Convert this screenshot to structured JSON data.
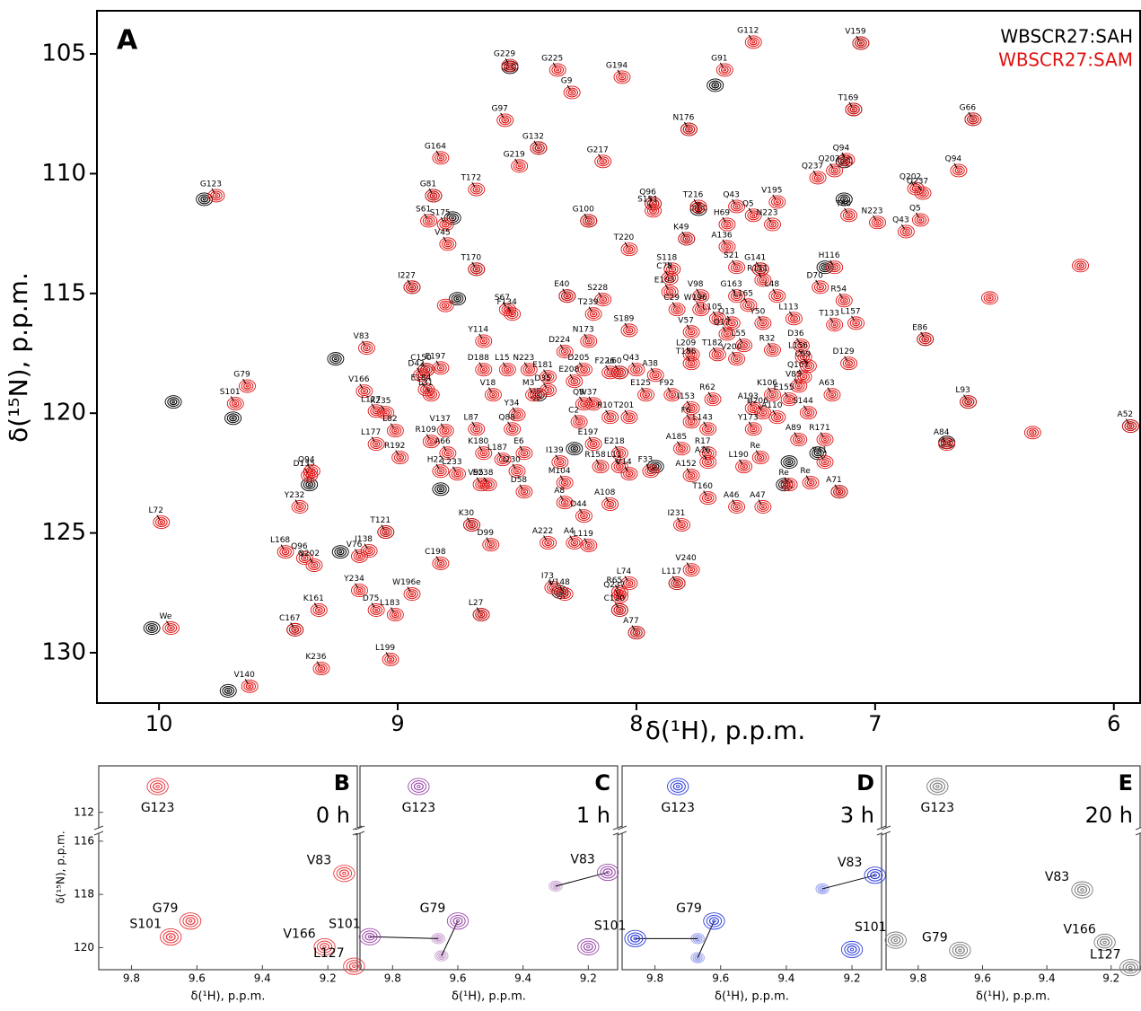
{
  "chart_data": [
    {
      "type": "scatter",
      "label": "A",
      "legend": "top-right",
      "xlabel": "δ(¹H), p.p.m.",
      "ylabel": "δ(¹⁵N), p.p.m.",
      "xlim": [
        10.26,
        5.89
      ],
      "ylim": [
        103.2,
        132.1
      ],
      "xticks": [
        10,
        9,
        8,
        7,
        6
      ],
      "yticks": [
        105,
        110,
        115,
        120,
        125,
        130
      ],
      "series": [
        {
          "name": "WBSCR27:SAH",
          "color": "#000000",
          "x": [
            8.53,
            7.67,
            7.78,
            7.09,
            8.41,
            9.81,
            8.85,
            8.77,
            8.2,
            7.93,
            7.74,
            7.79,
            8.94,
            8.67,
            8.75,
            8.29,
            7.48,
            7.21,
            9.26,
            8.88,
            9.94,
            9.69,
            10.03,
            9.71,
            9.37,
            8.82,
            8.69,
            9.05,
            9.24,
            8.65,
            9.43,
            8.32,
            8.07,
            7.83,
            8.0,
            7.36,
            7.24,
            7.38,
            6.7,
            6.79,
            5.93,
            7.13,
            7.13,
            7.06,
            6.59,
            6.61,
            7.15,
            8.07,
            7.92,
            8.41,
            8.26
          ],
          "values": [
            105.56,
            106.31,
            108.15,
            107.32,
            108.93,
            111.07,
            110.92,
            111.85,
            111.97,
            111.25,
            111.48,
            112.72,
            114.74,
            113.99,
            115.22,
            115.11,
            113.99,
            113.91,
            117.73,
            118.18,
            119.53,
            120.21,
            128.97,
            131.59,
            122.98,
            123.17,
            124.66,
            124.96,
            125.79,
            128.41,
            129.04,
            127.47,
            128.22,
            127.1,
            129.16,
            122.04,
            121.67,
            122.98,
            121.22,
            116.91,
            120.54,
            111.07,
            109.49,
            104.55,
            107.73,
            119.53,
            123.28,
            118.3,
            122.23,
            119.23,
            121.48
          ]
        },
        {
          "name": "WBSCR27:SAM",
          "color": "#e01010",
          "labels": [
            "G112",
            "V159",
            "G229",
            "G225",
            "G194",
            "G91",
            "G9",
            "G97",
            "N176",
            "T169",
            "G66",
            "G132",
            "G164",
            "G219",
            "G217",
            "Q94",
            "Q202",
            "Q237",
            "Q94",
            "G123",
            "G81",
            "T172",
            "G100",
            "Q96",
            "T216",
            "Q43",
            "V195",
            "S61",
            "S175",
            "S151",
            "K49",
            "Q5",
            "H69",
            "N223",
            "Q202",
            "Q237",
            "Q5",
            "N223",
            "Q43",
            "T80",
            "V45",
            "I227",
            "T170",
            "T220",
            "A136",
            "S21",
            "G141",
            "S118",
            "R111",
            "H116",
            "C78",
            "E40",
            "S228",
            "E103",
            "G163",
            "R54",
            "D70",
            "S67",
            "F134",
            "L165",
            "L48",
            "V98",
            "W196",
            "C29",
            "T239",
            "S189",
            "Y50",
            "Q13",
            "L105",
            "L113",
            "N173",
            "V57",
            "Q12",
            "T133",
            "L157",
            "V83",
            "Y114",
            "D224",
            "L55",
            "R32",
            "D36",
            "L209",
            "T182",
            "E197",
            "E86",
            "T186",
            "L156",
            "C150",
            "D188",
            "L15",
            "N223",
            "Q43",
            "A38",
            "L60",
            "V200",
            "C59",
            "D205",
            "F226",
            "E181",
            "E208",
            "D129",
            "D42",
            "Q107",
            "V166",
            "E184",
            "M3",
            "D35",
            "V18",
            "E125",
            "F92",
            "R62",
            "V85",
            "K106",
            "E155",
            "S101",
            "G79",
            "L31",
            "Q5",
            "L127",
            "Y34",
            "W37",
            "R10",
            "C2",
            "I153",
            "A193",
            "H206",
            "A63",
            "R235",
            "L87",
            "Q88",
            "V137",
            "T201",
            "A110",
            "S144",
            "L93",
            "F6",
            "L82",
            "L143",
            "Y173",
            "A89",
            "R171",
            "L177",
            "R109",
            "E197",
            "E6",
            "R192",
            "A66",
            "K180",
            "L187",
            "E218",
            "L11",
            "R17",
            "A185",
            "Re",
            "A16",
            "A84",
            "A52",
            "Y41",
            "H22",
            "I230",
            "I139",
            "R158",
            "V14",
            "F33",
            "L190",
            "Re",
            "Re",
            "L233",
            "M104",
            "A152",
            "V95",
            "E238",
            "D135",
            "Y232",
            "Q94",
            "D58",
            "A8",
            "A108",
            "D44",
            "T160",
            "A46",
            "A47",
            "A71",
            "L72",
            "K30",
            "T121",
            "L168",
            "I231",
            "A222",
            "A4",
            "D99",
            "L119",
            "I138",
            "V76",
            "C198",
            "Q96",
            "Q202",
            "V240",
            "R65",
            "L74",
            "L117",
            "Y234",
            "I73",
            "V148",
            "Q237",
            "C120",
            "W196e",
            "K161",
            "D75",
            "L183",
            "L27",
            "C167",
            "We",
            "A77",
            "L199",
            "V140",
            "K236",
            null,
            null,
            null,
            null
          ],
          "x": [
            7.51,
            7.06,
            8.53,
            8.33,
            8.06,
            7.63,
            8.27,
            8.55,
            7.78,
            7.09,
            6.59,
            8.41,
            8.82,
            8.49,
            8.14,
            7.12,
            7.17,
            7.24,
            6.65,
            9.76,
            8.85,
            8.67,
            8.2,
            7.93,
            7.74,
            7.58,
            7.41,
            8.87,
            8.8,
            7.93,
            7.79,
            7.51,
            7.62,
            7.43,
            6.83,
            6.8,
            6.81,
            6.99,
            6.87,
            7.11,
            8.79,
            8.94,
            8.67,
            8.03,
            7.62,
            7.58,
            7.48,
            7.85,
            7.47,
            7.17,
            7.86,
            8.29,
            8.14,
            7.86,
            7.58,
            7.13,
            7.23,
            8.54,
            8.52,
            7.53,
            7.41,
            7.73,
            7.73,
            7.83,
            8.18,
            8.03,
            7.47,
            7.6,
            7.66,
            7.34,
            8.2,
            7.77,
            7.62,
            7.17,
            7.08,
            9.13,
            8.64,
            8.3,
            7.55,
            7.43,
            7.31,
            7.77,
            7.66,
            8.82,
            6.79,
            7.77,
            7.3,
            8.88,
            8.64,
            8.54,
            8.45,
            8.0,
            7.92,
            8.07,
            7.58,
            7.28,
            8.22,
            8.11,
            8.37,
            8.26,
            7.11,
            8.9,
            7.3,
            9.14,
            8.88,
            8.43,
            8.37,
            8.6,
            7.96,
            7.85,
            7.68,
            7.32,
            7.43,
            7.36,
            9.68,
            9.63,
            8.86,
            8.22,
            9.09,
            8.5,
            8.18,
            8.11,
            8.24,
            7.77,
            7.51,
            7.47,
            7.18,
            9.05,
            8.67,
            8.52,
            8.8,
            8.03,
            7.41,
            7.28,
            6.61,
            7.77,
            9.01,
            7.7,
            7.51,
            7.32,
            7.21,
            9.09,
            8.86,
            8.18,
            8.47,
            8.99,
            8.79,
            8.64,
            8.56,
            8.07,
            8.07,
            7.7,
            7.81,
            7.48,
            7.7,
            6.7,
            5.93,
            7.21,
            8.82,
            8.5,
            8.32,
            8.15,
            8.03,
            7.94,
            7.55,
            7.36,
            7.27,
            8.75,
            8.3,
            7.77,
            8.65,
            8.62,
            9.37,
            9.41,
            9.36,
            8.47,
            8.3,
            8.11,
            8.22,
            7.7,
            7.58,
            7.47,
            7.15,
            9.99,
            8.69,
            9.05,
            9.47,
            7.81,
            8.37,
            8.26,
            8.61,
            8.2,
            9.12,
            9.16,
            8.82,
            9.39,
            9.35,
            7.77,
            8.07,
            8.03,
            7.83,
            9.16,
            8.35,
            8.3,
            8.07,
            8.07,
            8.94,
            9.33,
            9.09,
            9.01,
            8.65,
            9.43,
            9.95,
            8.0,
            9.03,
            9.62,
            9.32,
            6.14,
            6.52,
            6.34,
            8.8
          ],
          "values": [
            104.51,
            104.55,
            105.49,
            105.67,
            105.97,
            105.67,
            106.61,
            107.77,
            108.15,
            107.32,
            107.73,
            108.93,
            109.34,
            109.68,
            109.49,
            109.42,
            109.87,
            110.17,
            109.87,
            110.92,
            110.92,
            110.66,
            111.97,
            111.25,
            111.37,
            111.37,
            111.18,
            111.97,
            112.12,
            111.55,
            112.72,
            111.74,
            112.12,
            112.12,
            110.62,
            110.81,
            111.93,
            112.04,
            112.42,
            111.74,
            112.94,
            114.74,
            113.99,
            113.16,
            113.05,
            113.91,
            113.99,
            113.99,
            114.44,
            113.91,
            114.36,
            115.11,
            115.26,
            114.93,
            115.11,
            115.3,
            114.74,
            115.67,
            115.86,
            115.49,
            115.11,
            115.11,
            115.67,
            115.67,
            115.86,
            116.54,
            116.24,
            116.24,
            116.05,
            116.05,
            116.99,
            116.61,
            116.69,
            116.31,
            116.24,
            117.28,
            116.99,
            117.43,
            117.17,
            117.36,
            117.17,
            117.55,
            117.55,
            118.11,
            116.91,
            117.92,
            117.66,
            118.18,
            118.18,
            118.18,
            118.18,
            118.18,
            118.41,
            118.3,
            117.73,
            118.03,
            118.18,
            118.3,
            118.48,
            118.67,
            117.92,
            118.41,
            118.48,
            119.08,
            119.01,
            119.23,
            119.04,
            119.23,
            119.23,
            119.23,
            119.42,
            118.86,
            119.23,
            119.42,
            119.6,
            118.87,
            119.23,
            119.61,
            119.91,
            120.06,
            119.61,
            120.17,
            120.36,
            119.79,
            119.79,
            119.98,
            119.23,
            119.98,
            120.66,
            120.66,
            120.73,
            120.17,
            120.17,
            119.98,
            119.53,
            120.36,
            120.73,
            120.66,
            120.66,
            121.1,
            121.1,
            121.29,
            121.18,
            121.29,
            121.67,
            121.85,
            121.67,
            121.67,
            121.93,
            121.67,
            122.23,
            121.67,
            121.48,
            121.85,
            122.04,
            121.29,
            120.54,
            122.04,
            122.42,
            122.42,
            122.04,
            122.23,
            122.53,
            122.42,
            122.23,
            122.98,
            122.9,
            122.53,
            122.9,
            122.6,
            122.98,
            122.98,
            122.6,
            123.91,
            122.42,
            123.28,
            123.73,
            123.8,
            124.29,
            123.54,
            123.91,
            123.91,
            123.28,
            124.55,
            124.66,
            124.96,
            125.79,
            124.66,
            125.41,
            125.41,
            125.49,
            125.52,
            125.75,
            125.97,
            126.27,
            126.05,
            126.35,
            126.54,
            127.47,
            127.1,
            127.1,
            127.4,
            127.28,
            127.55,
            127.66,
            128.22,
            127.55,
            128.22,
            128.22,
            128.41,
            128.41,
            129.04,
            128.97,
            129.16,
            130.28,
            131.4,
            130.66,
            113.84,
            115.19,
            120.81,
            115.5
          ]
        }
      ]
    },
    {
      "type": "scatter",
      "label": "B",
      "subtitle": "0 h",
      "color": "#e8383c",
      "xlabel": "δ(¹H), p.p.m.",
      "ylabel": "δ(¹⁵N), p.p.m.",
      "xlim": [
        9.9,
        9.11
      ],
      "xticks": [
        9.8,
        9.6,
        9.4,
        9.2
      ],
      "ylim": [
        110.2,
        120.83
      ],
      "ybreak": [
        112.6,
        115.7
      ],
      "yticks": [
        112,
        116,
        118,
        120
      ],
      "peaks": [
        {
          "label": "G123",
          "x": 9.72,
          "y": 111.0
        },
        {
          "label": "V83",
          "x": 9.15,
          "y": 117.21
        },
        {
          "label": "G79",
          "x": 9.62,
          "y": 119.0
        },
        {
          "label": "S101",
          "x": 9.68,
          "y": 119.6
        },
        {
          "label": "V166",
          "x": 9.21,
          "y": 119.97
        },
        {
          "label": "L127",
          "x": 9.12,
          "y": 120.7
        }
      ]
    },
    {
      "type": "scatter",
      "label": "C",
      "subtitle": "1 h",
      "color": "#9a48a8",
      "xlabel": "δ(¹H), p.p.m.",
      "xlim": [
        9.9,
        9.11
      ],
      "xticks": [
        9.8,
        9.6,
        9.4,
        9.2
      ],
      "ylim": [
        110.2,
        120.83
      ],
      "ybreak": [
        112.6,
        115.7
      ],
      "peaks": [
        {
          "label": "G123",
          "x": 9.72,
          "y": 111.0
        },
        {
          "label": "V83",
          "x": 9.14,
          "y": 117.17,
          "x2": 9.3,
          "y2": 117.69
        },
        {
          "label": "S101",
          "x": 9.87,
          "y": 119.59,
          "x2": 9.66,
          "y2": 119.66
        },
        {
          "label": "G79",
          "x": 9.6,
          "y": 119.0,
          "x2": 9.65,
          "y2": 120.31
        },
        {
          "label": null,
          "x": 9.2,
          "y": 119.97
        }
      ]
    },
    {
      "type": "scatter",
      "label": "D",
      "subtitle": "3 h",
      "color": "#3040dd",
      "xlabel": "δ(¹H), p.p.m.",
      "xlim": [
        9.9,
        9.11
      ],
      "xticks": [
        9.8,
        9.6,
        9.4,
        9.2
      ],
      "ylim": [
        110.2,
        120.83
      ],
      "ybreak": [
        112.6,
        115.7
      ],
      "peaks": [
        {
          "label": "G123",
          "x": 9.73,
          "y": 111.0
        },
        {
          "label": "V83",
          "x": 9.13,
          "y": 117.28,
          "x2": 9.29,
          "y2": 117.79
        },
        {
          "label": "S101",
          "x": 9.86,
          "y": 119.66,
          "x2": 9.67,
          "y2": 119.66
        },
        {
          "label": "G79",
          "x": 9.62,
          "y": 119.0,
          "x2": 9.67,
          "y2": 120.38
        },
        {
          "label": null,
          "x": 9.2,
          "y": 120.07
        }
      ]
    },
    {
      "type": "scatter",
      "label": "E",
      "subtitle": "20 h",
      "color": "#777777",
      "xlabel": "δ(¹H), p.p.m.",
      "xlim": [
        9.9,
        9.11
      ],
      "xticks": [
        9.8,
        9.6,
        9.4,
        9.2
      ],
      "ylim": [
        110.2,
        120.83
      ],
      "ybreak": [
        112.6,
        115.7
      ],
      "peaks": [
        {
          "label": "G123",
          "x": 9.74,
          "y": 111.0
        },
        {
          "label": "V83",
          "x": 9.29,
          "y": 117.83
        },
        {
          "label": "S101",
          "x": 9.87,
          "y": 119.72
        },
        {
          "label": "G79",
          "x": 9.67,
          "y": 120.1
        },
        {
          "label": "V166",
          "x": 9.22,
          "y": 119.8
        },
        {
          "label": "L127",
          "x": 9.14,
          "y": 120.75
        }
      ]
    }
  ]
}
